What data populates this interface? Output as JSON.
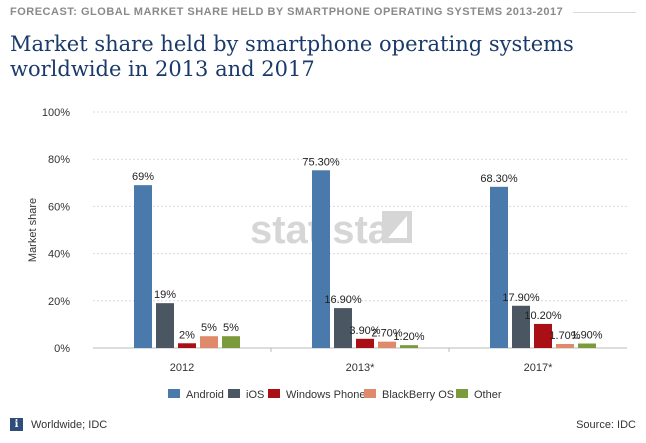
{
  "header": {
    "label": "FORECAST: GLOBAL MARKET SHARE HELD BY SMARTPHONE OPERATING SYSTEMS 2013-2017"
  },
  "title": "Market share held by smartphone operating systems worldwide in 2013 and 2017",
  "watermark": "statista",
  "footer": {
    "left": "Worldwide; IDC",
    "right": "Source: IDC",
    "info_icon": "i"
  },
  "chart_data": {
    "type": "bar",
    "title": "Market share held by smartphone operating systems worldwide in 2013 and 2017",
    "xlabel": "",
    "ylabel": "Market share",
    "ylim": [
      0,
      100
    ],
    "yticks": [
      "0%",
      "20%",
      "40%",
      "60%",
      "80%",
      "100%"
    ],
    "ytick_values": [
      0,
      20,
      40,
      60,
      80,
      100
    ],
    "categories": [
      "2012",
      "2013*",
      "2017*"
    ],
    "legend_position": "bottom",
    "series": [
      {
        "name": "Android",
        "color": "#4a7aab",
        "values": [
          69,
          75.3,
          68.3
        ],
        "labels": [
          "69%",
          "75.30%",
          "68.30%"
        ]
      },
      {
        "name": "iOS",
        "color": "#4b5663",
        "values": [
          19,
          16.9,
          17.9
        ],
        "labels": [
          "19%",
          "16.90%",
          "17.90%"
        ]
      },
      {
        "name": "Windows Phone",
        "color": "#a90f14",
        "values": [
          2,
          3.9,
          10.2
        ],
        "labels": [
          "2%",
          "3.90%",
          "10.20%"
        ]
      },
      {
        "name": "BlackBerry OS",
        "color": "#e08a6c",
        "values": [
          5,
          2.7,
          1.7
        ],
        "labels": [
          "5%",
          "2.70%",
          "1.70%"
        ]
      },
      {
        "name": "Other",
        "color": "#7a9a3c",
        "values": [
          5,
          1.2,
          1.9
        ],
        "labels": [
          "5%",
          "1.20%",
          "1.90%"
        ]
      }
    ]
  }
}
